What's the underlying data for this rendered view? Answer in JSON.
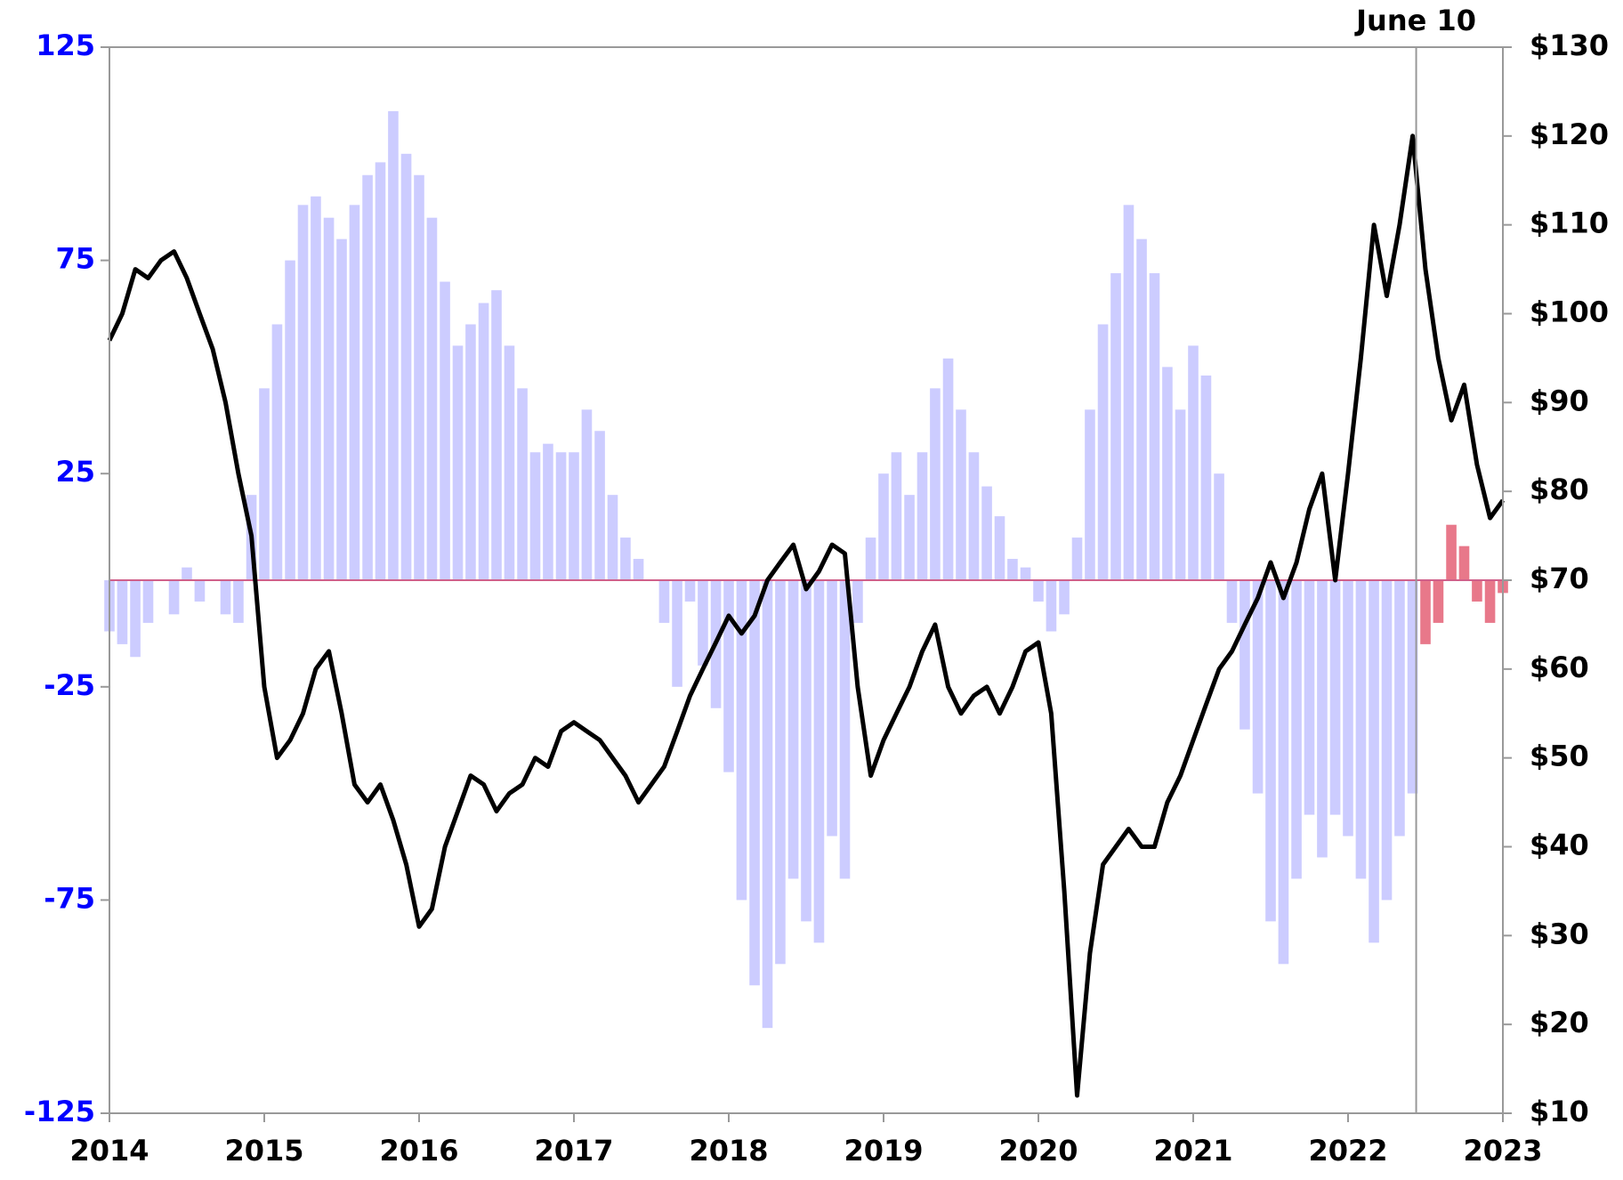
{
  "chart_data": {
    "type": "bar-line",
    "x": [
      2014,
      2014.083,
      2014.167,
      2014.25,
      2014.333,
      2014.417,
      2014.5,
      2014.583,
      2014.667,
      2014.75,
      2014.833,
      2014.917,
      2015,
      2015.083,
      2015.167,
      2015.25,
      2015.333,
      2015.417,
      2015.5,
      2015.583,
      2015.667,
      2015.75,
      2015.833,
      2015.917,
      2016,
      2016.083,
      2016.167,
      2016.25,
      2016.333,
      2016.417,
      2016.5,
      2016.583,
      2016.667,
      2016.75,
      2016.833,
      2016.917,
      2017,
      2017.083,
      2017.167,
      2017.25,
      2017.333,
      2017.417,
      2017.5,
      2017.583,
      2017.667,
      2017.75,
      2017.833,
      2017.917,
      2018,
      2018.083,
      2018.167,
      2018.25,
      2018.333,
      2018.417,
      2018.5,
      2018.583,
      2018.667,
      2018.75,
      2018.833,
      2018.917,
      2019,
      2019.083,
      2019.167,
      2019.25,
      2019.333,
      2019.417,
      2019.5,
      2019.583,
      2019.667,
      2019.75,
      2019.833,
      2019.917,
      2020,
      2020.083,
      2020.167,
      2020.25,
      2020.333,
      2020.417,
      2020.5,
      2020.583,
      2020.667,
      2020.75,
      2020.833,
      2020.917,
      2021,
      2021.083,
      2021.167,
      2021.25,
      2021.333,
      2021.417,
      2021.5,
      2021.583,
      2021.667,
      2021.75,
      2021.833,
      2021.917,
      2022,
      2022.083,
      2022.167,
      2022.25,
      2022.333,
      2022.417,
      2022.5,
      2022.583,
      2022.667,
      2022.75,
      2022.833,
      2022.917,
      2023
    ],
    "series": [
      {
        "color": "#ccccff",
        "highlight_color": "#e8788a",
        "values": [
          -12,
          -15,
          -18,
          -10,
          0,
          -8,
          3,
          -5,
          0,
          -8,
          -10,
          20,
          45,
          60,
          75,
          88,
          90,
          85,
          80,
          88,
          95,
          98,
          110,
          100,
          95,
          85,
          70,
          55,
          60,
          65,
          68,
          55,
          45,
          30,
          32,
          30,
          30,
          40,
          35,
          20,
          10,
          5,
          0,
          -10,
          -25,
          -5,
          -20,
          -30,
          -45,
          -75,
          -95,
          -105,
          -90,
          -70,
          -80,
          -85,
          -60,
          -70,
          -10,
          10,
          25,
          30,
          20,
          30,
          45,
          52,
          40,
          30,
          22,
          15,
          5,
          3,
          -5,
          -12,
          -8,
          10,
          40,
          60,
          72,
          88,
          80,
          72,
          50,
          40,
          55,
          48,
          25,
          -10,
          -35,
          -50,
          -80,
          -90,
          -70,
          -55,
          -65,
          -55,
          -60,
          -70,
          -85,
          -75,
          -60,
          -50,
          -15,
          -10,
          13,
          8,
          -5,
          -10,
          -3
        ]
      },
      {
        "color": "#000000",
        "axis": "y2",
        "values": [
          97,
          100,
          105,
          104,
          106,
          107,
          104,
          100,
          96,
          90,
          82,
          75,
          58,
          50,
          52,
          55,
          60,
          62,
          55,
          47,
          45,
          47,
          43,
          38,
          31,
          33,
          40,
          44,
          48,
          47,
          44,
          46,
          47,
          50,
          49,
          53,
          54,
          53,
          52,
          50,
          48,
          45,
          47,
          49,
          53,
          57,
          60,
          63,
          66,
          64,
          66,
          70,
          72,
          74,
          69,
          71,
          74,
          73,
          58,
          48,
          52,
          55,
          58,
          62,
          65,
          58,
          55,
          57,
          58,
          55,
          58,
          62,
          63,
          55,
          35,
          12,
          28,
          38,
          40,
          42,
          40,
          40,
          45,
          48,
          52,
          56,
          60,
          62,
          65,
          68,
          72,
          68,
          72,
          78,
          82,
          70,
          82,
          95,
          110,
          102,
          110,
          120,
          105,
          95,
          88,
          92,
          83,
          77,
          79
        ]
      }
    ],
    "xlim": [
      2014,
      2023
    ],
    "xticks": [
      2014,
      2015,
      2016,
      2017,
      2018,
      2019,
      2020,
      2021,
      2022,
      2023
    ],
    "ylim": [
      -125,
      125
    ],
    "yticks": [
      125,
      75,
      25,
      -25,
      -75,
      -125
    ],
    "ytick_color": "#0000ff",
    "y2lim": [
      10,
      130
    ],
    "y2ticks": [
      {
        "value": 130,
        "label": "$130"
      },
      {
        "value": 120,
        "label": "$120"
      },
      {
        "value": 110,
        "label": "$110"
      },
      {
        "value": 100,
        "label": "$100"
      },
      {
        "value": 90,
        "label": "$90"
      },
      {
        "value": 80,
        "label": "$80"
      },
      {
        "value": 70,
        "label": "$70"
      },
      {
        "value": 60,
        "label": "$60"
      },
      {
        "value": 50,
        "label": "$50"
      },
      {
        "value": 40,
        "label": "$40"
      },
      {
        "value": 30,
        "label": "$30"
      },
      {
        "value": 20,
        "label": "$20"
      },
      {
        "value": 10,
        "label": "$10"
      }
    ],
    "annotation": {
      "text": "June 10",
      "x": 2022.44
    }
  }
}
